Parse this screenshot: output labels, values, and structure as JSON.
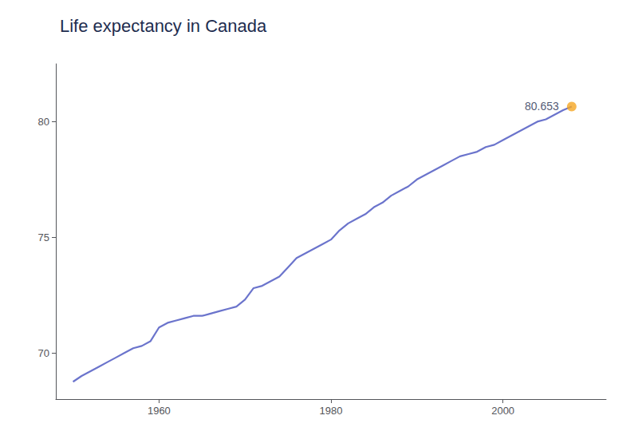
{
  "chart_data": {
    "type": "line",
    "title": "Life expectancy in Canada",
    "x": [
      1950,
      1951,
      1952,
      1953,
      1954,
      1955,
      1956,
      1957,
      1958,
      1959,
      1960,
      1961,
      1962,
      1963,
      1964,
      1965,
      1966,
      1967,
      1968,
      1969,
      1970,
      1971,
      1972,
      1973,
      1974,
      1975,
      1976,
      1977,
      1978,
      1979,
      1980,
      1981,
      1982,
      1983,
      1984,
      1985,
      1986,
      1987,
      1988,
      1989,
      1990,
      1991,
      1992,
      1993,
      1994,
      1995,
      1996,
      1997,
      1998,
      1999,
      2000,
      2001,
      2002,
      2003,
      2004,
      2005,
      2006,
      2007,
      2008
    ],
    "values": [
      68.75,
      69.0,
      69.2,
      69.4,
      69.6,
      69.8,
      70.0,
      70.2,
      70.3,
      70.5,
      71.1,
      71.3,
      71.4,
      71.5,
      71.6,
      71.6,
      71.7,
      71.8,
      71.9,
      72.0,
      72.3,
      72.8,
      72.9,
      73.1,
      73.3,
      73.7,
      74.1,
      74.3,
      74.5,
      74.7,
      74.9,
      75.3,
      75.6,
      75.8,
      76.0,
      76.3,
      76.5,
      76.8,
      77.0,
      77.2,
      77.5,
      77.7,
      77.9,
      78.1,
      78.3,
      78.5,
      78.6,
      78.7,
      78.9,
      79.0,
      79.2,
      79.4,
      79.6,
      79.8,
      80.0,
      80.1,
      80.3,
      80.5,
      80.653
    ],
    "color": "#6b74cc",
    "annotations": [
      {
        "text": "80.653",
        "x": 2008,
        "y": 80.653,
        "color": "#f5a623"
      }
    ],
    "xlim": [
      1948,
      2012
    ],
    "xticks": [
      1960,
      1980,
      2000
    ],
    "ylim": [
      68.0,
      82.5
    ],
    "yticks": [
      70,
      75,
      80
    ],
    "grid": false
  }
}
